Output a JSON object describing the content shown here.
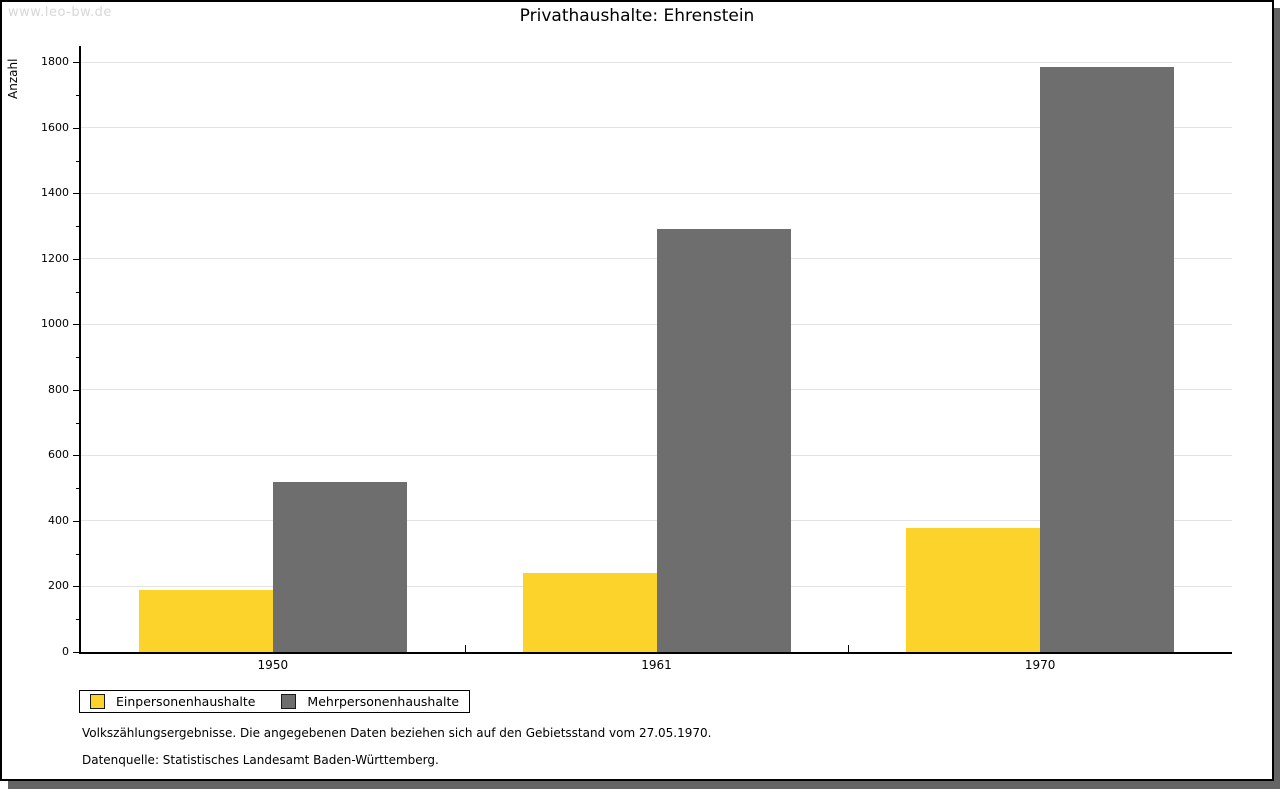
{
  "watermark": "www.leo-bw.de",
  "chart_data": {
    "type": "bar",
    "title": "Privathaushalte: Ehrenstein",
    "categories": [
      "1950",
      "1961",
      "1970"
    ],
    "series": [
      {
        "name": "Einpersonenhaushalte",
        "color": "#FCD32B",
        "values": [
          190,
          240,
          378
        ]
      },
      {
        "name": "Mehrpersonenhaushalte",
        "color": "#6E6E6E",
        "values": [
          520,
          1290,
          1786
        ]
      }
    ],
    "xlabel": "",
    "ylabel": "Anzahl",
    "ylim": [
      0,
      1850
    ],
    "y_tick_max": 1800,
    "y_major_step": 200,
    "y_minor_step": 100,
    "grid": true,
    "legend_position": "bottom-left"
  },
  "footnotes": [
    "Volkszählungsergebnisse. Die angegebenen Daten beziehen sich auf den Gebietsstand vom 27.05.1970.",
    "Datenquelle: Statistisches Landesamt Baden-Württemberg."
  ],
  "colors": {
    "background": "#FFFFFF",
    "bar_yellow": "#FCD32B",
    "bar_gray": "#6E6E6E",
    "gridline": "#E3E3E3",
    "axis": "#000000",
    "watermark": "#D8D8D8",
    "frame_border": "#000000",
    "frame_shadow": "#646464"
  }
}
